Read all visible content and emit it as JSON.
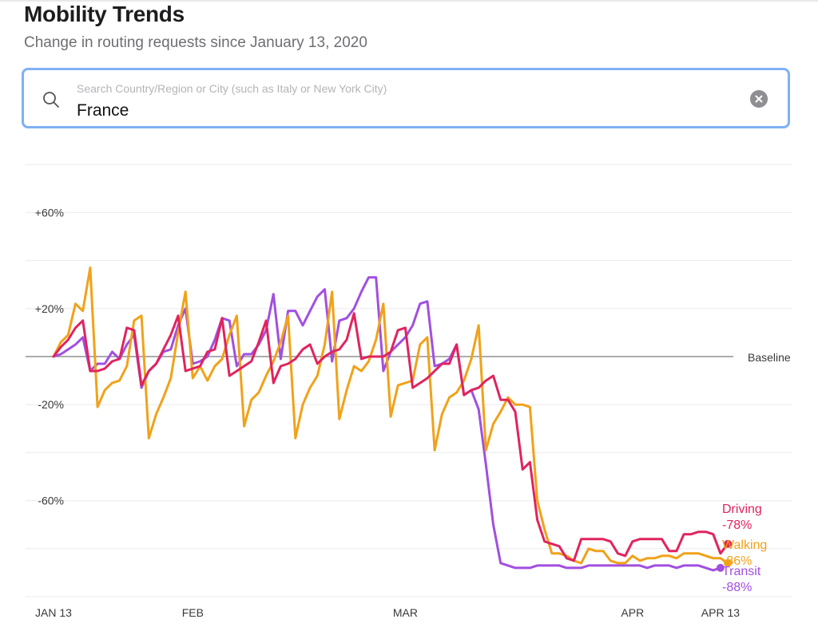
{
  "header": {
    "title": "Mobility Trends",
    "subtitle": "Change in routing requests since January 13, 2020"
  },
  "search": {
    "placeholder": "Search Country/Region or City (such as Italy or New York City)",
    "value": "France",
    "search_icon": "search-icon",
    "clear_icon": "clear-icon"
  },
  "chart_data": {
    "type": "line",
    "y_ticks": [
      {
        "value": 60,
        "label": "+60%"
      },
      {
        "value": 20,
        "label": "+20%"
      },
      {
        "value": -20,
        "label": "-20%"
      },
      {
        "value": -60,
        "label": "-60%"
      }
    ],
    "ylim": [
      -100,
      80
    ],
    "x_ticks": [
      {
        "day": 0,
        "label": "JAN 13"
      },
      {
        "day": 19,
        "label": "FEB"
      },
      {
        "day": 48,
        "label": "MAR"
      },
      {
        "day": 79,
        "label": "APR"
      },
      {
        "day": 91,
        "label": "APR 13"
      }
    ],
    "baseline_label": "Baseline",
    "series": [
      {
        "name": "Driving",
        "color": "#e0245e",
        "final_label": "Driving",
        "final_value": "-78%",
        "values": [
          0,
          4,
          7,
          12,
          15,
          -6,
          -6,
          -5,
          -2,
          -1,
          12,
          11,
          -12,
          -6,
          -3,
          3,
          9,
          17,
          -6,
          -5,
          -4,
          2,
          3,
          16,
          -8,
          -6,
          -4,
          -2,
          6,
          15,
          -11,
          -4,
          -3,
          -1,
          3,
          5,
          -3,
          0,
          2,
          3,
          7,
          18,
          -1,
          0,
          0,
          0,
          2,
          11,
          12,
          -13,
          -11,
          -9,
          -6,
          -3,
          -3,
          5,
          -16,
          -14,
          -13,
          -10,
          -8,
          -18,
          -18,
          -23,
          -47,
          -44,
          -68,
          -77,
          -78,
          -79,
          -84,
          -85,
          -76,
          -76,
          -76,
          -76,
          -77,
          -82,
          -83,
          -77,
          -76,
          -76,
          -76,
          -76,
          -81,
          -81,
          -74,
          -74,
          -73,
          -73,
          -74,
          -82,
          -78
        ]
      },
      {
        "name": "Walking",
        "color": "#f0a21a",
        "final_label": "Walking",
        "final_value": "-86%",
        "values": [
          0,
          6,
          9,
          22,
          19,
          37,
          -21,
          -14,
          -11,
          -10,
          -4,
          15,
          17,
          -34,
          -24,
          -17,
          -9,
          10,
          27,
          -9,
          -4,
          -10,
          -4,
          -1,
          9,
          17,
          -29,
          -18,
          -15,
          -8,
          -2,
          6,
          17,
          -34,
          -20,
          -13,
          -8,
          5,
          27,
          -26,
          -14,
          -4,
          -6,
          -2,
          7,
          22,
          -25,
          -12,
          -11,
          -10,
          5,
          8,
          -39,
          -24,
          -17,
          -15,
          -10,
          -1,
          13,
          -39,
          -28,
          -23,
          -17,
          -20,
          -20,
          -21,
          -60,
          -72,
          -82,
          -82,
          -83,
          -85,
          -86,
          -80,
          -81,
          -81,
          -85,
          -86,
          -86,
          -83,
          -85,
          -84,
          -84,
          -83,
          -83,
          -84,
          -82,
          -82,
          -82,
          -83,
          -84,
          -84,
          -86
        ]
      },
      {
        "name": "Transit",
        "color": "#a14fe0",
        "final_label": "Transit",
        "final_value": "-88%",
        "values": [
          0,
          1,
          3,
          5,
          8,
          -6,
          -3,
          -3,
          2,
          -1,
          5,
          9,
          -13,
          -6,
          -3,
          2,
          3,
          13,
          20,
          -3,
          -2,
          0,
          7,
          16,
          15,
          -4,
          1,
          1,
          5,
          11,
          26,
          -1,
          19,
          19,
          13,
          19,
          25,
          28,
          -2,
          15,
          16,
          20,
          27,
          33,
          33,
          -6,
          2,
          5,
          8,
          13,
          22,
          23,
          -4,
          -3,
          -1,
          5,
          -16,
          -14,
          -22,
          -45,
          -70,
          -86,
          -87,
          -88,
          -88,
          -88,
          -87,
          -87,
          -87,
          -87,
          -88,
          -88,
          -88,
          -87,
          -87,
          -87,
          -87,
          -87,
          -87,
          -87,
          -87,
          -88,
          -87,
          -87,
          -87,
          -88,
          -87,
          -87,
          -87,
          -88,
          -89,
          -88
        ]
      }
    ]
  }
}
